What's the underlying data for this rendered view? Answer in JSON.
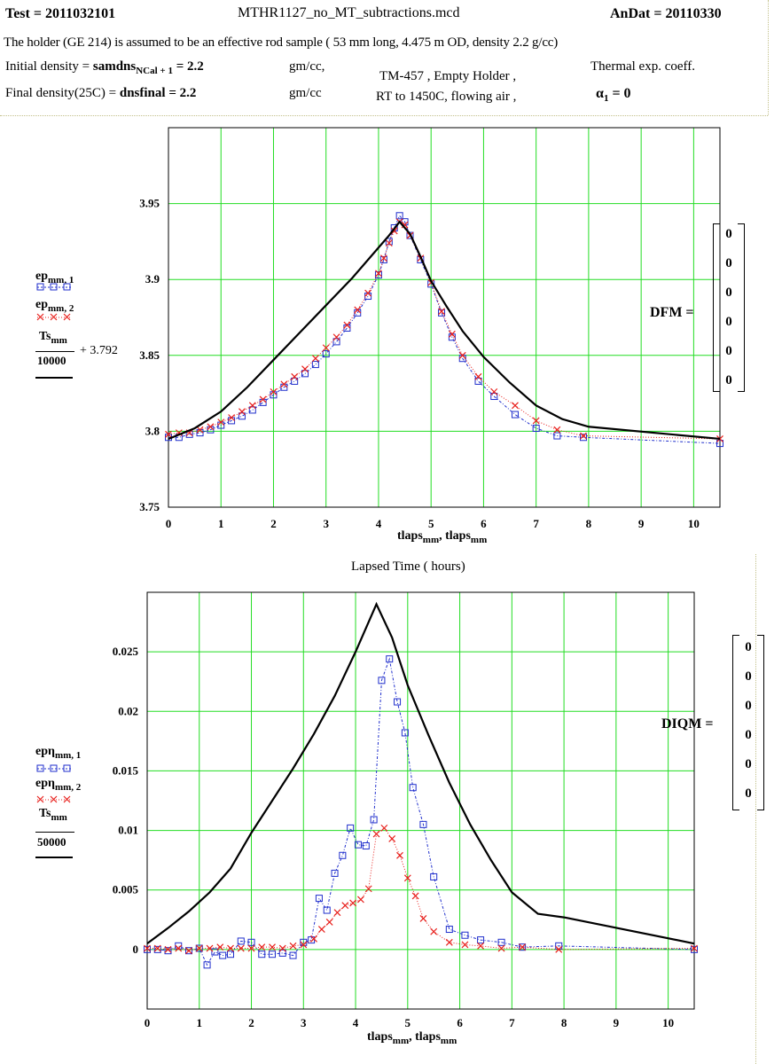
{
  "header": {
    "test_label": "Test = 2011032101",
    "file_name": "MTHR1127_no_MT_subtractions.mcd",
    "andat_label": "AnDat = 20110330",
    "description": "The  holder (GE 214)  is assumed to be an effective rod sample ( 53 mm long, 4.475 m OD, density 2.2 g/cc)",
    "init_label": "Initial density = ",
    "init_var": "samdns",
    "init_sub": "NCal + 1",
    "init_val": " = 2.2",
    "init_unit": "gm/cc,",
    "final_label": "Final density(25C) = ",
    "final_var": "dnsfinal = 2.2",
    "final_unit": "gm/cc",
    "tm_line1": "TM-457 , Empty Holder ,",
    "tm_line2": "RT to 1450C, flowing air ,",
    "thermal_label": "Thermal exp. coeff.",
    "alpha_sym": "α",
    "alpha_sub": "1",
    "alpha_val": " = 0"
  },
  "chart1": {
    "matrix_label": "DFM  =",
    "matrix_values": [
      "0",
      "0",
      "0",
      "0",
      "0",
      "0"
    ],
    "legend": {
      "s1_var": "ep",
      "s1_sub": "mm, 1",
      "s2_var": "ep",
      "s2_sub": "mm, 2",
      "s3_num_var": "Ts",
      "s3_num_sub": "mm",
      "s3_den": "10000",
      "s3_tail": "+ 3.792"
    },
    "xlabel_var": "tlaps",
    "xlabel_sub": "mm",
    "xlabel_var2": ", tlaps",
    "xlabel_sub2": "mm",
    "caption": "Lapsed Time ( hours)"
  },
  "chart2": {
    "matrix_label": "DIQM  =",
    "matrix_values": [
      "0",
      "0",
      "0",
      "0",
      "0",
      "0"
    ],
    "legend": {
      "s1_var": "epη",
      "s1_sub": "mm, 1",
      "s2_var": "epη",
      "s2_sub": "mm, 2",
      "s3_num_var": "Ts",
      "s3_num_sub": "mm",
      "s3_den": "50000"
    },
    "xlabel_var": "tlaps",
    "xlabel_sub": "mm",
    "xlabel_var2": ", tlaps",
    "xlabel_sub2": "mm"
  },
  "chart_data": [
    {
      "type": "line",
      "xlim": [
        0,
        10.5
      ],
      "ylim": [
        3.75,
        4.0
      ],
      "x_ticks": [
        0,
        1,
        2,
        3,
        4,
        5,
        6,
        7,
        8,
        9,
        10
      ],
      "y_ticks": [
        3.75,
        3.8,
        3.85,
        3.9,
        3.95
      ],
      "y_tick_labels": [
        "3.75",
        "3.8",
        "3.85",
        "3.9",
        "3.95"
      ],
      "grid": true,
      "legend_position": "left",
      "colors": {
        "s1": "#1f2ecc",
        "s2": "#e8201c",
        "s3": "#000000",
        "grid": "#22dd22"
      },
      "series": [
        {
          "key": "s1",
          "marker": "square",
          "x": [
            0,
            0.2,
            0.4,
            0.6,
            0.8,
            1.0,
            1.2,
            1.4,
            1.6,
            1.8,
            2.0,
            2.2,
            2.4,
            2.6,
            2.8,
            3.0,
            3.2,
            3.4,
            3.6,
            3.8,
            4.0,
            4.1,
            4.2,
            4.3,
            4.4,
            4.5,
            4.6,
            4.8,
            5.0,
            5.2,
            5.4,
            5.6,
            5.9,
            6.2,
            6.6,
            7.0,
            7.4,
            7.9,
            10.5
          ],
          "y": [
            3.796,
            3.796,
            3.798,
            3.799,
            3.801,
            3.804,
            3.807,
            3.81,
            3.814,
            3.819,
            3.824,
            3.829,
            3.833,
            3.838,
            3.844,
            3.851,
            3.859,
            3.868,
            3.878,
            3.889,
            3.903,
            3.913,
            3.925,
            3.934,
            3.942,
            3.938,
            3.929,
            3.913,
            3.897,
            3.878,
            3.862,
            3.848,
            3.833,
            3.823,
            3.811,
            3.802,
            3.797,
            3.796,
            3.792
          ]
        },
        {
          "key": "s2",
          "marker": "x",
          "x": [
            0,
            0.2,
            0.4,
            0.6,
            0.8,
            1.0,
            1.2,
            1.4,
            1.6,
            1.8,
            2.0,
            2.2,
            2.4,
            2.6,
            2.8,
            3.0,
            3.2,
            3.4,
            3.6,
            3.8,
            4.0,
            4.1,
            4.2,
            4.3,
            4.4,
            4.5,
            4.6,
            4.8,
            5.0,
            5.2,
            5.4,
            5.6,
            5.9,
            6.2,
            6.6,
            7.0,
            7.4,
            7.9,
            10.5
          ],
          "y": [
            3.798,
            3.799,
            3.799,
            3.801,
            3.803,
            3.806,
            3.809,
            3.813,
            3.817,
            3.821,
            3.826,
            3.831,
            3.836,
            3.841,
            3.848,
            3.855,
            3.862,
            3.87,
            3.88,
            3.891,
            3.904,
            3.914,
            3.924,
            3.932,
            3.938,
            3.936,
            3.929,
            3.914,
            3.898,
            3.879,
            3.864,
            3.85,
            3.836,
            3.826,
            3.817,
            3.807,
            3.801,
            3.797,
            3.795
          ]
        },
        {
          "key": "s3",
          "marker": "none",
          "x": [
            0,
            0.5,
            1.0,
            1.5,
            2.0,
            2.5,
            3.0,
            3.5,
            4.0,
            4.2,
            4.4,
            4.6,
            4.8,
            5.0,
            5.3,
            5.6,
            6.0,
            6.5,
            7.0,
            7.5,
            8.0,
            10.5
          ],
          "y": [
            3.795,
            3.802,
            3.813,
            3.829,
            3.847,
            3.865,
            3.883,
            3.901,
            3.921,
            3.929,
            3.938,
            3.93,
            3.915,
            3.899,
            3.882,
            3.866,
            3.849,
            3.832,
            3.817,
            3.808,
            3.803,
            3.795
          ]
        }
      ]
    },
    {
      "type": "line",
      "xlim": [
        0,
        10.5
      ],
      "ylim": [
        -0.005,
        0.03
      ],
      "x_ticks": [
        0,
        1,
        2,
        3,
        4,
        5,
        6,
        7,
        8,
        9,
        10
      ],
      "y_ticks": [
        0,
        0.005,
        0.01,
        0.015,
        0.02,
        0.025
      ],
      "y_tick_labels": [
        "0",
        "0.005",
        "0.01",
        "0.015",
        "0.02",
        "0.025"
      ],
      "grid": true,
      "legend_position": "left",
      "colors": {
        "s1": "#1f2ecc",
        "s2": "#e8201c",
        "s3": "#000000",
        "grid": "#22dd22"
      },
      "series": [
        {
          "key": "s1",
          "marker": "square",
          "x": [
            0,
            0.2,
            0.4,
            0.6,
            0.8,
            1.0,
            1.15,
            1.3,
            1.45,
            1.6,
            1.8,
            2.0,
            2.2,
            2.4,
            2.6,
            2.8,
            3.0,
            3.15,
            3.3,
            3.45,
            3.6,
            3.75,
            3.9,
            4.05,
            4.2,
            4.35,
            4.5,
            4.65,
            4.8,
            4.95,
            5.1,
            5.3,
            5.5,
            5.8,
            6.1,
            6.4,
            6.8,
            7.2,
            7.9,
            10.5
          ],
          "y": [
            0.0,
            0.0,
            -0.0001,
            0.0003,
            -0.0001,
            0.0001,
            -0.0013,
            -0.0002,
            -0.0005,
            -0.0004,
            0.0007,
            0.0006,
            -0.0004,
            -0.0004,
            -0.0003,
            -0.0005,
            0.0006,
            0.0008,
            0.0043,
            0.0033,
            0.0064,
            0.0079,
            0.0102,
            0.0088,
            0.0087,
            0.0109,
            0.0226,
            0.0244,
            0.0208,
            0.0182,
            0.0136,
            0.0105,
            0.0061,
            0.0017,
            0.0012,
            0.0008,
            0.0006,
            0.0002,
            0.0003,
            0.0
          ]
        },
        {
          "key": "s2",
          "marker": "x",
          "x": [
            0,
            0.2,
            0.4,
            0.6,
            0.8,
            1.0,
            1.2,
            1.4,
            1.6,
            1.8,
            2.0,
            2.2,
            2.4,
            2.6,
            2.8,
            3.0,
            3.2,
            3.35,
            3.5,
            3.65,
            3.8,
            3.95,
            4.1,
            4.25,
            4.4,
            4.55,
            4.7,
            4.85,
            5.0,
            5.15,
            5.3,
            5.5,
            5.8,
            6.1,
            6.4,
            6.8,
            7.2,
            7.9,
            10.5
          ],
          "y": [
            0.0001,
            0.0001,
            0.0,
            0.0001,
            -0.0001,
            0.0001,
            0.0001,
            0.0002,
            0.0001,
            0.0001,
            0.0001,
            0.0002,
            0.0002,
            0.0001,
            0.0003,
            0.0004,
            0.0009,
            0.0017,
            0.0023,
            0.0031,
            0.0037,
            0.0039,
            0.0042,
            0.0051,
            0.0097,
            0.0102,
            0.0093,
            0.0079,
            0.006,
            0.0045,
            0.0026,
            0.0015,
            0.0006,
            0.0004,
            0.0003,
            0.0001,
            0.0002,
            0.0,
            0.0001
          ]
        },
        {
          "key": "s3",
          "marker": "none",
          "x": [
            0,
            0.4,
            0.8,
            1.2,
            1.6,
            2.0,
            2.4,
            2.8,
            3.2,
            3.6,
            4.0,
            4.4,
            4.7,
            5.0,
            5.4,
            5.8,
            6.2,
            6.6,
            7.0,
            7.5,
            8.0,
            10.5
          ],
          "y": [
            0.0005,
            0.0018,
            0.0032,
            0.0048,
            0.0068,
            0.0098,
            0.0125,
            0.0152,
            0.0181,
            0.0213,
            0.025,
            0.029,
            0.0262,
            0.0222,
            0.018,
            0.014,
            0.0105,
            0.0075,
            0.0048,
            0.003,
            0.0027,
            0.0005
          ]
        }
      ]
    }
  ]
}
